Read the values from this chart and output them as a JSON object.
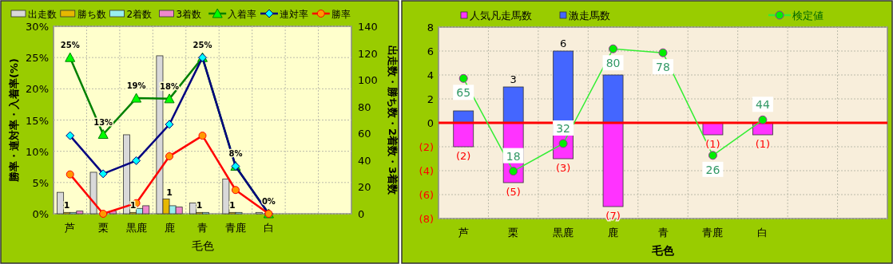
{
  "chart_data": [
    {
      "type": "bar",
      "categories": [
        "芦",
        "栗",
        "黒鹿",
        "鹿",
        "青",
        "青鹿",
        "白",
        null,
        null
      ],
      "xlabel": "毛色",
      "ylabel": "勝率・連対率・入着率(%)",
      "y2label": "出走数・勝ち数・2着数・3着数",
      "ylim": [
        0,
        30
      ],
      "yticks": [
        {
          "value": 0,
          "label": "0%"
        },
        {
          "value": 5,
          "label": "5%"
        },
        {
          "value": 10,
          "label": "10%"
        },
        {
          "value": 15,
          "label": "15%"
        },
        {
          "value": 20,
          "label": "20%"
        },
        {
          "value": 25,
          "label": "25%"
        },
        {
          "value": 30,
          "label": "30%"
        }
      ],
      "y2lim": [
        0,
        140
      ],
      "y2ticks": [
        0,
        20,
        40,
        60,
        80,
        100,
        120,
        140
      ],
      "grid": true,
      "legend": "top",
      "series": [
        {
          "name": "出走数",
          "color": "#d9d9d9",
          "axis": "y2",
          "values": [
            16,
            31,
            59,
            118,
            8,
            26,
            1,
            null,
            null
          ]
        },
        {
          "name": "勝ち数",
          "color": "#e6b800",
          "axis": "y2",
          "values": [
            1,
            0,
            1,
            11,
            1,
            1,
            0,
            null,
            null
          ],
          "value_labels": [
            "1",
            null,
            "1",
            null,
            "1",
            "1",
            null,
            null,
            null
          ]
        },
        {
          "name": "2着数",
          "color": "#99eeee",
          "axis": "y2",
          "values": [
            1,
            null,
            4,
            6,
            1,
            1,
            0,
            null,
            null
          ]
        },
        {
          "name": "3着数",
          "color": "#ee88cc",
          "axis": "y2",
          "values": [
            2,
            2,
            6,
            5,
            0,
            0,
            0,
            null,
            null
          ]
        },
        {
          "name": "入着率",
          "type": "line",
          "color": "#008000",
          "marker": "triangle",
          "values": [
            25,
            12.7,
            18.5,
            18.4,
            25,
            7.6,
            0,
            null,
            null
          ],
          "value_labels": [
            "25%",
            "13%",
            "19%",
            "18%",
            "25%",
            "8%",
            "0%",
            null,
            null
          ]
        },
        {
          "name": "連対率",
          "type": "line",
          "color": "#000080",
          "marker": "diamond",
          "values": [
            12.5,
            6.4,
            8.5,
            14.3,
            25,
            7.6,
            0,
            null,
            null
          ]
        },
        {
          "name": "勝率",
          "type": "line",
          "color": "#ff0000",
          "marker": "circle",
          "values": [
            6.3,
            0,
            1.7,
            9.2,
            12.5,
            3.8,
            0,
            null,
            null
          ]
        }
      ],
      "annotations": [
        {
          "text": "1",
          "x": "鹿",
          "y": 2.36
        }
      ]
    },
    {
      "type": "bar",
      "stacked": true,
      "categories": [
        "芦",
        "栗",
        "黒鹿",
        "鹿",
        "青",
        "青鹿",
        "白",
        null,
        null
      ],
      "xlabel": "毛色",
      "ylim": [
        -8,
        8
      ],
      "yticks": [
        {
          "value": 8,
          "label": "8"
        },
        {
          "value": 6,
          "label": "6"
        },
        {
          "value": 4,
          "label": "4"
        },
        {
          "value": 2,
          "label": "2"
        },
        {
          "value": 0,
          "label": "0"
        },
        {
          "value": -2,
          "label": "(2)"
        },
        {
          "value": -4,
          "label": "(4)"
        },
        {
          "value": -6,
          "label": "(6)"
        },
        {
          "value": -8,
          "label": "(8)"
        }
      ],
      "y2lim": [
        -6,
        91
      ],
      "grid": true,
      "legend": "top",
      "ref_lines": [
        {
          "axis": "y",
          "value": 0,
          "color": "#ff0000"
        }
      ],
      "series": [
        {
          "name": "人気凡走馬数",
          "color": "#ff33ff",
          "values": [
            -2,
            -5,
            -3,
            -7,
            0,
            -1,
            -1,
            null,
            null
          ],
          "value_labels": [
            "(2)",
            "(5)",
            "(3)",
            "(7)",
            null,
            "(1)",
            "(1)",
            null,
            null
          ]
        },
        {
          "name": "激走馬数",
          "color": "#4466ff",
          "values": [
            1,
            3,
            6,
            4,
            0,
            0,
            0,
            null,
            null
          ],
          "value_labels": [
            null,
            "3",
            "6",
            null,
            null,
            null,
            null,
            null,
            null
          ]
        },
        {
          "name": "検定値",
          "type": "line",
          "axis": "y2",
          "color": "#33ee33",
          "marker": "circle",
          "values": [
            65,
            18,
            32,
            80,
            78,
            26,
            44,
            null,
            null
          ],
          "value_labels": [
            "65",
            "18",
            "32",
            "80",
            "78",
            "26",
            "44",
            null,
            null
          ]
        }
      ]
    }
  ]
}
